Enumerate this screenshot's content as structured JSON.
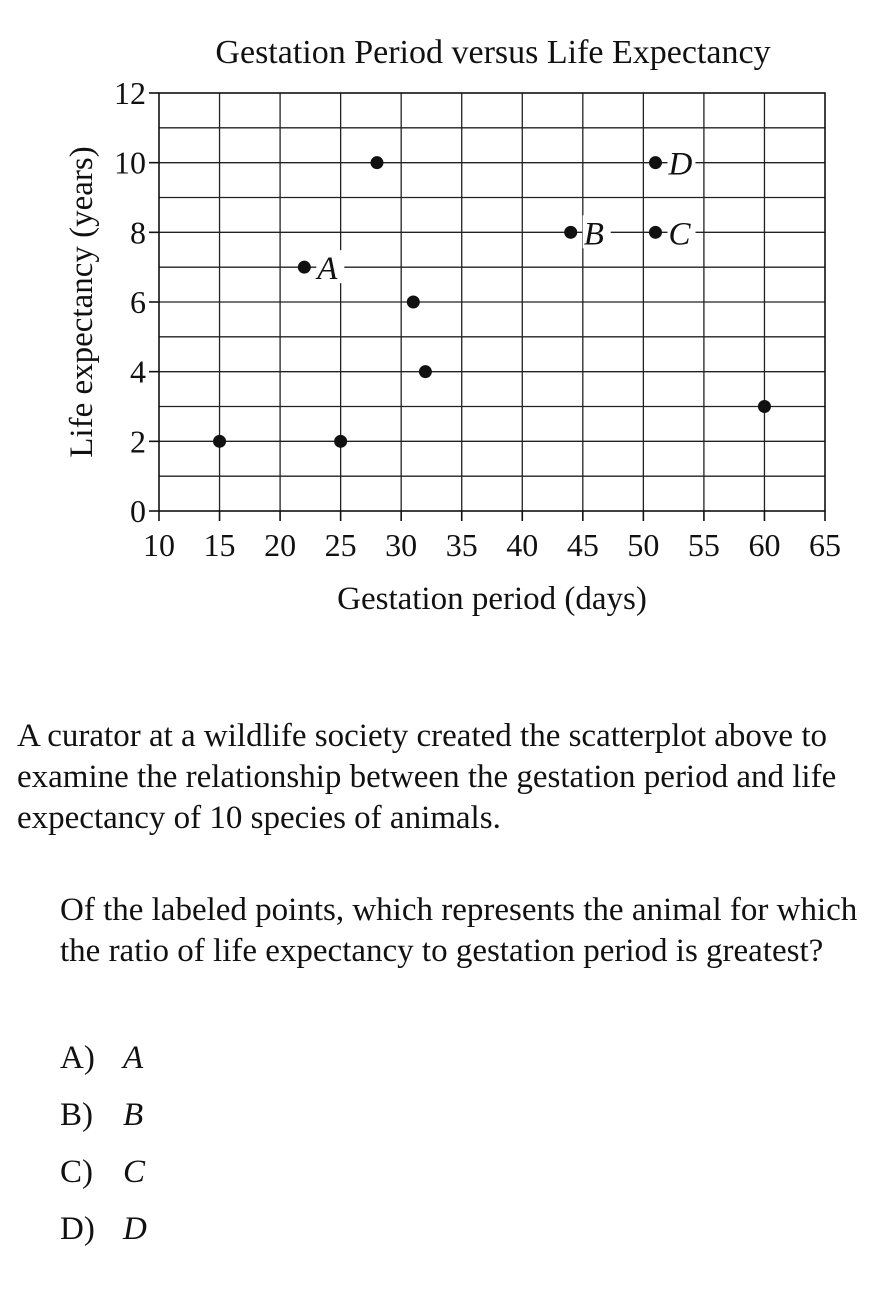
{
  "chart_data": {
    "type": "scatter",
    "title": "Gestation Period versus Life Expectancy",
    "xlabel": "Gestation period (days)",
    "ylabel": "Life expectancy (years)",
    "xlim": [
      10,
      65
    ],
    "ylim": [
      0,
      12
    ],
    "xticks": [
      10,
      15,
      20,
      25,
      30,
      35,
      40,
      45,
      50,
      55,
      60,
      65
    ],
    "yticks": [
      0,
      2,
      4,
      6,
      8,
      10,
      12
    ],
    "grid": true,
    "legend": "none",
    "points": [
      {
        "x": 15,
        "y": 2,
        "label": ""
      },
      {
        "x": 22,
        "y": 7,
        "label": "A"
      },
      {
        "x": 25,
        "y": 2,
        "label": ""
      },
      {
        "x": 28,
        "y": 10,
        "label": ""
      },
      {
        "x": 31,
        "y": 6,
        "label": ""
      },
      {
        "x": 32,
        "y": 4,
        "label": ""
      },
      {
        "x": 44,
        "y": 8,
        "label": "B"
      },
      {
        "x": 51,
        "y": 8,
        "label": "C"
      },
      {
        "x": 51,
        "y": 10,
        "label": "D"
      },
      {
        "x": 60,
        "y": 3,
        "label": ""
      }
    ]
  },
  "intro_text": "A curator at a wildlife society created the scatterplot above to examine the relationship between the gestation period and life expectancy of 10 species of animals.",
  "question_text": "Of the labeled points, which represents the animal for which the ratio of life expectancy to gestation period is greatest?",
  "choices": [
    {
      "letter": "A)",
      "text": "A"
    },
    {
      "letter": "B)",
      "text": "B"
    },
    {
      "letter": "C)",
      "text": "C"
    },
    {
      "letter": "D)",
      "text": "D"
    }
  ]
}
